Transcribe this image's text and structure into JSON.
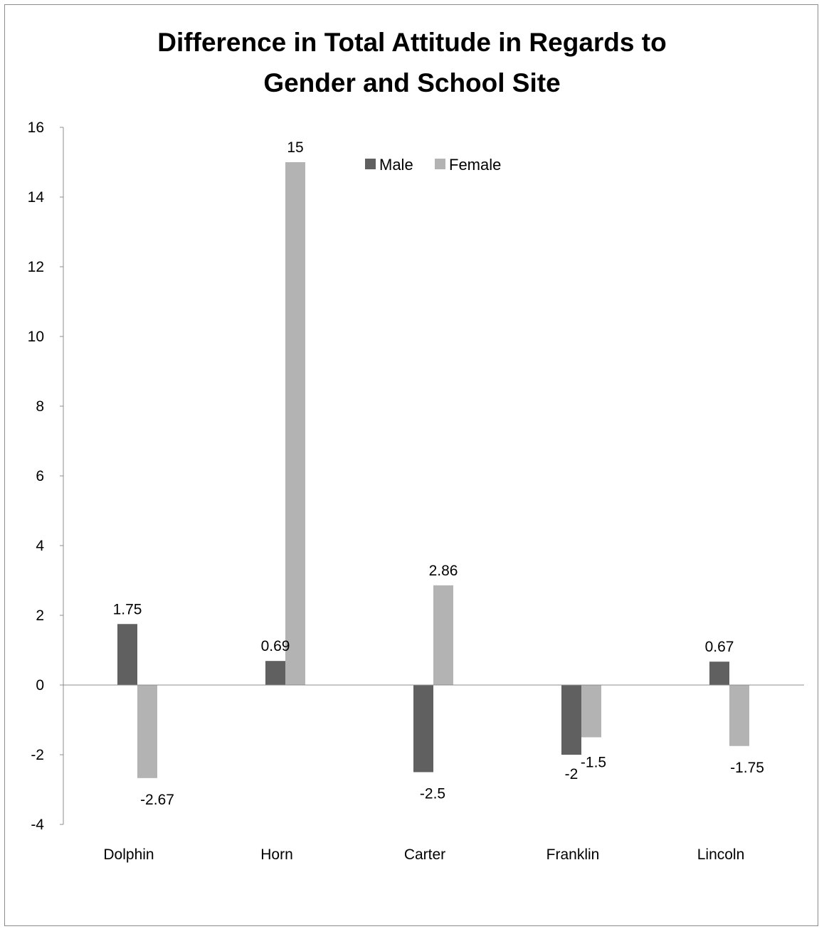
{
  "chart_data": {
    "type": "bar",
    "title_lines": [
      "Difference in Total Attitude in Regards to",
      "Gender and School Site"
    ],
    "xlabel": "",
    "ylabel": "",
    "categories": [
      "Dolphin",
      "Horn",
      "Carter",
      "Franklin",
      "Lincoln"
    ],
    "series": [
      {
        "name": "Male",
        "color": "#606060",
        "values": [
          1.75,
          0.69,
          -2.5,
          -2,
          0.67
        ],
        "labels": [
          "1.75",
          "0.69",
          "-2.5",
          "-2",
          "0.67"
        ]
      },
      {
        "name": "Female",
        "color": "#b3b3b3",
        "values": [
          -2.67,
          15,
          2.86,
          -1.5,
          -1.75
        ],
        "labels": [
          "-2.67",
          "15",
          "2.86",
          "-1.5",
          "-1.75"
        ]
      }
    ],
    "ylim": [
      -4,
      16
    ],
    "yticks": [
      "16",
      "14",
      "12",
      "10",
      "8",
      "6",
      "4",
      "2",
      "0",
      "-2",
      "-4"
    ],
    "grid": false,
    "legend_position": "top-center"
  }
}
